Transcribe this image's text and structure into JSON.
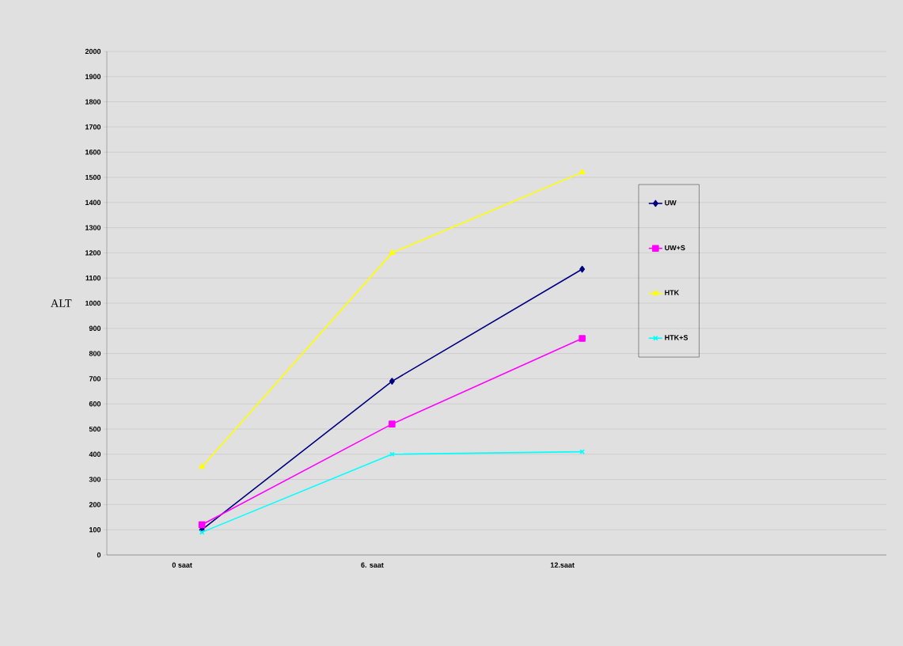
{
  "chart_data": {
    "type": "line",
    "ylabel": "ALT",
    "categories": [
      "0 saat",
      "6. saat",
      "12.saat"
    ],
    "series": [
      {
        "name": "UW",
        "color": "#000080",
        "marker": "diamond",
        "values": [
          100,
          690,
          1135
        ]
      },
      {
        "name": "UW+S",
        "color": "#ff00ff",
        "marker": "square",
        "values": [
          120,
          520,
          860
        ]
      },
      {
        "name": "HTK",
        "color": "#ffff00",
        "marker": "triangle",
        "values": [
          350,
          1200,
          1520
        ]
      },
      {
        "name": "HTK+S",
        "color": "#00ffff",
        "marker": "cross",
        "values": [
          90,
          400,
          410
        ]
      }
    ],
    "ylim": [
      0,
      2000
    ],
    "yticks": [
      0,
      100,
      200,
      300,
      400,
      500,
      600,
      700,
      800,
      900,
      1000,
      1100,
      1200,
      1300,
      1400,
      1500,
      1600,
      1700,
      1800,
      1900,
      2000
    ],
    "grid": "y",
    "legend": "right"
  }
}
